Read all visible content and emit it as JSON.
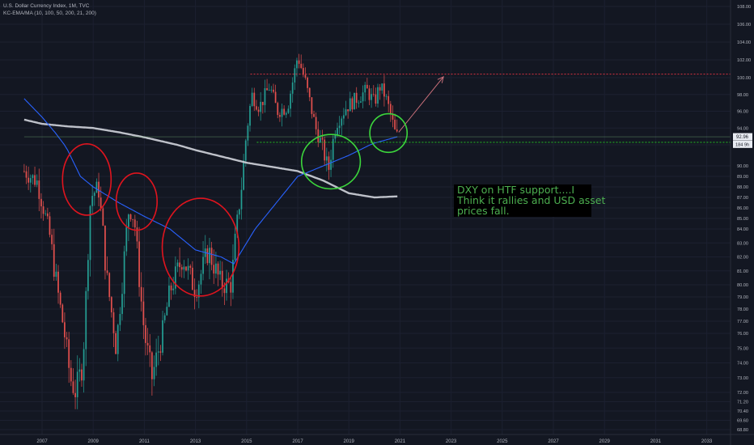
{
  "header": {
    "title": "U.S. Dollar Currency Index, 1M, TVC",
    "indicator": "KC-EMA/MA (10, 100, 50, 200, 21, 200)"
  },
  "annotation": {
    "lines": [
      "DXY on HTF support....I",
      "Think it rallies and USD asset",
      "prices fall."
    ]
  },
  "price_labels": {
    "last": "92.96",
    "countdown": "184 9h"
  },
  "colors": {
    "background": "#131722",
    "up": "#26a69a",
    "down": "#ef5350",
    "ema": "#2962ff",
    "ma": "#d1d4dc",
    "circle_red": "#e0141e",
    "circle_green": "#3cd63c",
    "resistance": "#f23645",
    "support": "#22ab22"
  },
  "chart_data": {
    "type": "candlestick",
    "title": "U.S. Dollar Currency Index, 1M, TVC",
    "xlabel": "",
    "ylabel": "",
    "x_range": [
      2006.3,
      2034.0
    ],
    "ylim": [
      67.5,
      108.9
    ],
    "y_ticks": [
      "68.80",
      "69.60",
      "70.40",
      "71.20",
      "72.00",
      "73.00",
      "74.00",
      "75.00",
      "76.00",
      "77.00",
      "78.00",
      "79.00",
      "80.00",
      "81.00",
      "82.00",
      "83.00",
      "84.00",
      "85.00",
      "86.00",
      "87.00",
      "88.00",
      "89.00",
      "90.00",
      "92.00",
      "94.00",
      "96.00",
      "98.00",
      "100.00",
      "102.00",
      "104.00",
      "106.00",
      "108.00"
    ],
    "x_ticks": [
      "2007",
      "2009",
      "2011",
      "2013",
      "2015",
      "2017",
      "2019",
      "2021",
      "2023",
      "2025",
      "2027",
      "2029",
      "2031",
      "2033"
    ],
    "price_keypoints": [
      {
        "x": 2006.3,
        "y": 89.5
      },
      {
        "x": 2006.8,
        "y": 88.5
      },
      {
        "x": 2007.3,
        "y": 83.5
      },
      {
        "x": 2007.8,
        "y": 77.0
      },
      {
        "x": 2008.1,
        "y": 73.0
      },
      {
        "x": 2008.3,
        "y": 72.0
      },
      {
        "x": 2008.6,
        "y": 74.0
      },
      {
        "x": 2008.9,
        "y": 87.0
      },
      {
        "x": 2009.2,
        "y": 88.0
      },
      {
        "x": 2009.5,
        "y": 81.0
      },
      {
        "x": 2009.9,
        "y": 75.0
      },
      {
        "x": 2010.4,
        "y": 86.0
      },
      {
        "x": 2010.6,
        "y": 85.0
      },
      {
        "x": 2011.0,
        "y": 76.0
      },
      {
        "x": 2011.3,
        "y": 73.0
      },
      {
        "x": 2011.7,
        "y": 76.0
      },
      {
        "x": 2012.0,
        "y": 79.5
      },
      {
        "x": 2012.5,
        "y": 82.0
      },
      {
        "x": 2013.0,
        "y": 79.5
      },
      {
        "x": 2013.5,
        "y": 82.5
      },
      {
        "x": 2014.0,
        "y": 80.0
      },
      {
        "x": 2014.4,
        "y": 80.0
      },
      {
        "x": 2014.8,
        "y": 88.0
      },
      {
        "x": 2015.0,
        "y": 93.5
      },
      {
        "x": 2015.2,
        "y": 98.0
      },
      {
        "x": 2015.5,
        "y": 96.5
      },
      {
        "x": 2015.9,
        "y": 99.0
      },
      {
        "x": 2016.2,
        "y": 96.0
      },
      {
        "x": 2016.6,
        "y": 96.5
      },
      {
        "x": 2016.9,
        "y": 101.0
      },
      {
        "x": 2017.0,
        "y": 102.5
      },
      {
        "x": 2017.3,
        "y": 99.5
      },
      {
        "x": 2017.7,
        "y": 94.0
      },
      {
        "x": 2018.0,
        "y": 91.5
      },
      {
        "x": 2018.2,
        "y": 89.5
      },
      {
        "x": 2018.5,
        "y": 94.5
      },
      {
        "x": 2018.9,
        "y": 96.5
      },
      {
        "x": 2019.3,
        "y": 97.5
      },
      {
        "x": 2019.7,
        "y": 98.5
      },
      {
        "x": 2020.0,
        "y": 97.0
      },
      {
        "x": 2020.2,
        "y": 99.0
      },
      {
        "x": 2020.4,
        "y": 98.0
      },
      {
        "x": 2020.6,
        "y": 96.0
      },
      {
        "x": 2020.8,
        "y": 93.5
      },
      {
        "x": 2020.9,
        "y": 93.0
      }
    ],
    "ema_curve": [
      {
        "x": 2006.3,
        "y": 97.5
      },
      {
        "x": 2007.0,
        "y": 95.3
      },
      {
        "x": 2007.5,
        "y": 93.5
      },
      {
        "x": 2008.0,
        "y": 91.5
      },
      {
        "x": 2008.5,
        "y": 89.0
      },
      {
        "x": 2009.0,
        "y": 88.0
      },
      {
        "x": 2010.0,
        "y": 86.5
      },
      {
        "x": 2011.0,
        "y": 85.2
      },
      {
        "x": 2012.0,
        "y": 84.0
      },
      {
        "x": 2013.0,
        "y": 82.5
      },
      {
        "x": 2014.0,
        "y": 82.0
      },
      {
        "x": 2014.5,
        "y": 81.5
      },
      {
        "x": 2015.0,
        "y": 83.0
      },
      {
        "x": 2016.0,
        "y": 86.0
      },
      {
        "x": 2017.0,
        "y": 89.0
      },
      {
        "x": 2018.0,
        "y": 90.0
      },
      {
        "x": 2019.0,
        "y": 91.0
      },
      {
        "x": 2020.0,
        "y": 92.2
      },
      {
        "x": 2020.9,
        "y": 92.96
      }
    ],
    "ma_curve": [
      {
        "x": 2006.3,
        "y": 95.0
      },
      {
        "x": 2007.0,
        "y": 94.5
      },
      {
        "x": 2008.0,
        "y": 94.2
      },
      {
        "x": 2009.0,
        "y": 94.0
      },
      {
        "x": 2010.0,
        "y": 93.5
      },
      {
        "x": 2011.0,
        "y": 92.9
      },
      {
        "x": 2012.0,
        "y": 92.2
      },
      {
        "x": 2013.0,
        "y": 91.5
      },
      {
        "x": 2014.0,
        "y": 90.9
      },
      {
        "x": 2015.0,
        "y": 90.3
      },
      {
        "x": 2016.0,
        "y": 89.9
      },
      {
        "x": 2017.0,
        "y": 89.5
      },
      {
        "x": 2018.0,
        "y": 88.6
      },
      {
        "x": 2019.0,
        "y": 87.4
      },
      {
        "x": 2020.0,
        "y": 87.0
      },
      {
        "x": 2020.9,
        "y": 87.1
      }
    ],
    "levels": [
      {
        "name": "resistance",
        "y": 100.4,
        "x_start": 2015.15,
        "x_end": 2034.0,
        "style": "dotted"
      },
      {
        "name": "support",
        "y": 92.3,
        "x_start": 2015.4,
        "x_end": 2034.0,
        "style": "dotted"
      },
      {
        "name": "last-price",
        "y": 92.96,
        "x_start": 2006.3,
        "x_end": 2034.0,
        "style": "solid"
      }
    ],
    "arrow": {
      "from": {
        "x": 2020.95,
        "y": 93.5
      },
      "to": {
        "x": 2022.7,
        "y": 100.1
      }
    },
    "circles": [
      {
        "color": "red",
        "cx": 2008.75,
        "cy": 88.7,
        "rx_years": 0.95,
        "ry": 3.4
      },
      {
        "color": "red",
        "cx": 2010.7,
        "cy": 86.6,
        "rx_years": 0.8,
        "ry": 2.7
      },
      {
        "color": "red",
        "cx": 2013.2,
        "cy": 82.7,
        "rx_years": 1.5,
        "ry": 3.9
      },
      {
        "color": "green",
        "cx": 2018.3,
        "cy": 90.4,
        "rx_years": 1.15,
        "ry": 2.7
      },
      {
        "color": "green",
        "cx": 2020.55,
        "cy": 93.4,
        "rx_years": 0.73,
        "ry": 2.2
      }
    ]
  }
}
